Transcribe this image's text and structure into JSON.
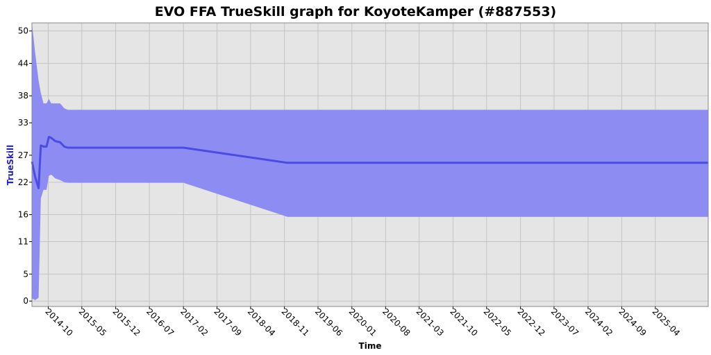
{
  "chart_data": {
    "type": "area",
    "title": "EVO FFA TrueSkill graph for KoyoteKamper (#887553)",
    "xlabel": "Time",
    "ylabel": "TrueSkill",
    "ylim": [
      -1,
      51.5
    ],
    "xlim": [
      "2014-06-20",
      "2026-03-01"
    ],
    "yticks": [
      0,
      5,
      11,
      16,
      22,
      27,
      33,
      38,
      44,
      50
    ],
    "xticks": [
      "2014-10",
      "2015-05",
      "2015-12",
      "2016-07",
      "2017-02",
      "2017-09",
      "2018-04",
      "2018-11",
      "2019-06",
      "2020-01",
      "2020-08",
      "2021-03",
      "2021-10",
      "2022-05",
      "2022-12",
      "2023-07",
      "2024-02",
      "2024-09",
      "2025-04"
    ],
    "grid": true,
    "colors": {
      "background": "#e5e5e5",
      "band": "#8c8cf2",
      "line": "#4a4ae6",
      "ylabel": "#2222cc",
      "grid": "#c4c4c4"
    },
    "series": [
      {
        "x": [
          "2014-06-20",
          "2014-07-10",
          "2014-08-01",
          "2014-08-15",
          "2014-09-01",
          "2014-09-20",
          "2014-10-05",
          "2014-10-20",
          "2014-11-15",
          "2014-12-15",
          "2015-01-10",
          "2015-02-01",
          "2017-02-01",
          "2018-11-20",
          "2026-03-01"
        ],
        "y": [
          25.8,
          23.0,
          20.9,
          28.8,
          28.6,
          28.6,
          30.4,
          30.2,
          29.6,
          29.4,
          28.6,
          28.4,
          28.4,
          25.6,
          25.6
        ],
        "lower": [
          0.5,
          0.2,
          0.6,
          19.0,
          20.6,
          20.6,
          23.2,
          23.4,
          22.7,
          22.4,
          22.0,
          21.9,
          21.9,
          15.6,
          15.6
        ],
        "upper": [
          51.5,
          46.0,
          40.8,
          38.5,
          36.6,
          36.6,
          37.4,
          36.6,
          36.6,
          36.6,
          35.7,
          35.4,
          35.4,
          35.4,
          35.4
        ]
      }
    ]
  }
}
